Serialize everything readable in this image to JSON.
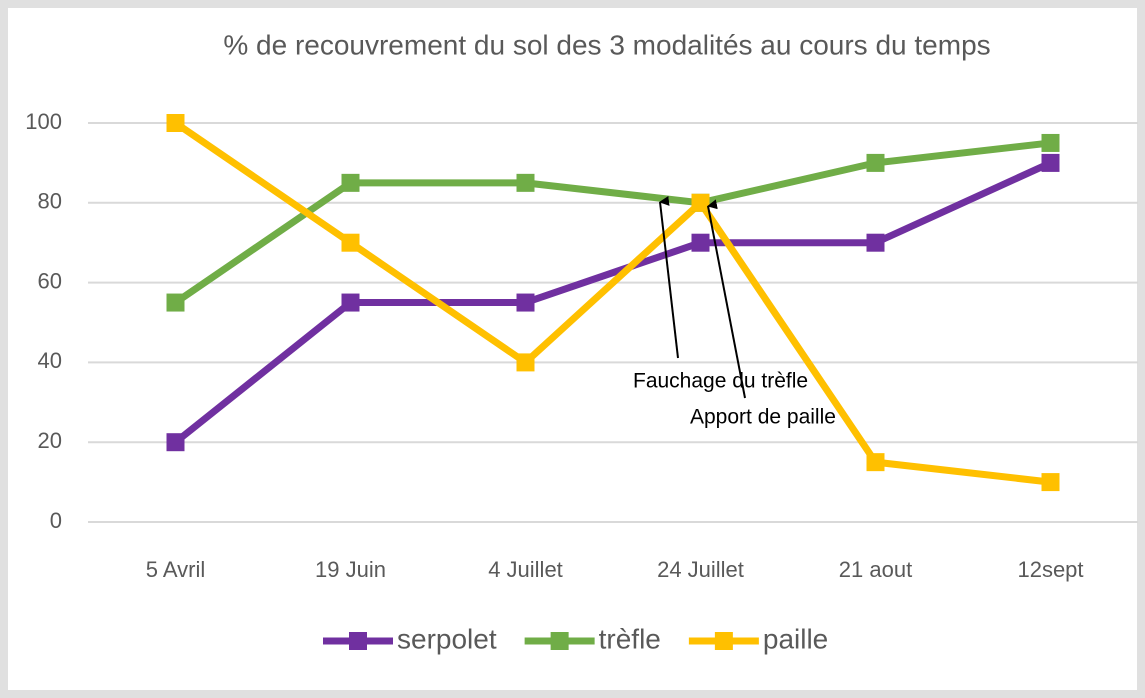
{
  "chart_data": {
    "type": "line",
    "title": "% de recouvrement du sol des 3 modalités au cours du temps",
    "categories": [
      "5 Avril",
      "19 Juin",
      "4 Juillet",
      "24 Juillet",
      "21 aout",
      "12sept"
    ],
    "series": [
      {
        "name": "serpolet",
        "color": "#7030a0",
        "values": [
          20,
          55,
          55,
          70,
          70,
          90
        ]
      },
      {
        "name": "trèfle",
        "color": "#70ad47",
        "values": [
          55,
          85,
          85,
          80,
          90,
          95
        ]
      },
      {
        "name": "paille",
        "color": "#ffc000",
        "values": [
          100,
          70,
          40,
          80,
          15,
          10
        ]
      }
    ],
    "ylim": [
      0,
      100
    ],
    "yticks": [
      0,
      20,
      40,
      60,
      80,
      100
    ],
    "grid": true,
    "legend": "bottom",
    "annotations": [
      "Fauchage du trèfle",
      "Apport de paille"
    ]
  }
}
